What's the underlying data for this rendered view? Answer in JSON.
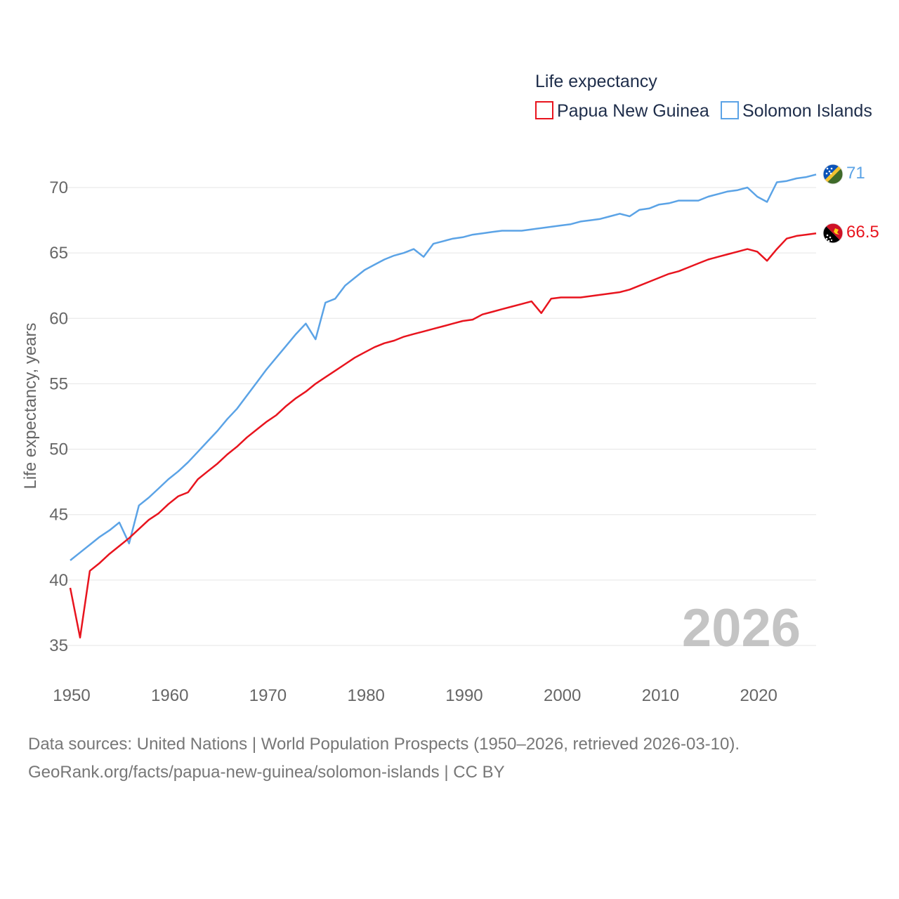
{
  "chart_data": {
    "type": "line",
    "legend_title": "Life expectancy",
    "legend_position": "top-right",
    "ylabel": "Life expectancy, years",
    "xlabel": "",
    "ylim": [
      33,
      73
    ],
    "xlim": [
      1950,
      2026
    ],
    "yticks": [
      35,
      40,
      45,
      50,
      55,
      60,
      65,
      70
    ],
    "xticks": [
      1950,
      1960,
      1970,
      1980,
      1990,
      2000,
      2010,
      2020
    ],
    "grid": true,
    "year_label": "2026",
    "series": [
      {
        "name": "Papua New Guinea",
        "color": "#e8141e",
        "flag_icon": "papua-new-guinea-flag-icon",
        "end_label": "66.5",
        "x": [
          1950,
          1951,
          1952,
          1953,
          1954,
          1955,
          1956,
          1957,
          1958,
          1959,
          1960,
          1961,
          1962,
          1963,
          1964,
          1965,
          1966,
          1967,
          1968,
          1969,
          1970,
          1971,
          1972,
          1973,
          1974,
          1975,
          1976,
          1977,
          1978,
          1979,
          1980,
          1981,
          1982,
          1983,
          1984,
          1985,
          1986,
          1987,
          1988,
          1989,
          1990,
          1991,
          1992,
          1993,
          1994,
          1995,
          1996,
          1997,
          1998,
          1999,
          2000,
          2001,
          2002,
          2003,
          2004,
          2005,
          2006,
          2007,
          2008,
          2009,
          2010,
          2011,
          2012,
          2013,
          2014,
          2015,
          2016,
          2017,
          2018,
          2019,
          2020,
          2021,
          2022,
          2023,
          2024,
          2025,
          2026
        ],
        "values": [
          39.4,
          35.6,
          40.7,
          41.3,
          42.0,
          42.6,
          43.2,
          43.9,
          44.6,
          45.1,
          45.8,
          46.4,
          46.7,
          47.7,
          48.3,
          48.9,
          49.6,
          50.2,
          50.9,
          51.5,
          52.1,
          52.6,
          53.3,
          53.9,
          54.4,
          55.0,
          55.5,
          56.0,
          56.5,
          57.0,
          57.4,
          57.8,
          58.1,
          58.3,
          58.6,
          58.8,
          59.0,
          59.2,
          59.4,
          59.6,
          59.8,
          59.9,
          60.3,
          60.5,
          60.7,
          60.9,
          61.1,
          61.3,
          60.4,
          61.5,
          61.6,
          61.6,
          61.6,
          61.7,
          61.8,
          61.9,
          62.0,
          62.2,
          62.5,
          62.8,
          63.1,
          63.4,
          63.6,
          63.9,
          64.2,
          64.5,
          64.7,
          64.9,
          65.1,
          65.3,
          65.1,
          64.4,
          65.3,
          66.1,
          66.3,
          66.4,
          66.5
        ]
      },
      {
        "name": "Solomon Islands",
        "color": "#5ba3e6",
        "flag_icon": "solomon-islands-flag-icon",
        "end_label": "71",
        "x": [
          1950,
          1951,
          1952,
          1953,
          1954,
          1955,
          1956,
          1957,
          1958,
          1959,
          1960,
          1961,
          1962,
          1963,
          1964,
          1965,
          1966,
          1967,
          1968,
          1969,
          1970,
          1971,
          1972,
          1973,
          1974,
          1975,
          1976,
          1977,
          1978,
          1979,
          1980,
          1981,
          1982,
          1983,
          1984,
          1985,
          1986,
          1987,
          1988,
          1989,
          1990,
          1991,
          1992,
          1993,
          1994,
          1995,
          1996,
          1997,
          1998,
          1999,
          2000,
          2001,
          2002,
          2003,
          2004,
          2005,
          2006,
          2007,
          2008,
          2009,
          2010,
          2011,
          2012,
          2013,
          2014,
          2015,
          2016,
          2017,
          2018,
          2019,
          2020,
          2021,
          2022,
          2023,
          2024,
          2025,
          2026
        ],
        "values": [
          41.5,
          42.1,
          42.7,
          43.3,
          43.8,
          44.4,
          42.8,
          45.7,
          46.3,
          47.0,
          47.7,
          48.3,
          49.0,
          49.8,
          50.6,
          51.4,
          52.3,
          53.1,
          54.1,
          55.1,
          56.1,
          57.0,
          57.9,
          58.8,
          59.6,
          58.4,
          61.2,
          61.5,
          62.5,
          63.1,
          63.7,
          64.1,
          64.5,
          64.8,
          65.0,
          65.3,
          64.7,
          65.7,
          65.9,
          66.1,
          66.2,
          66.4,
          66.5,
          66.6,
          66.7,
          66.7,
          66.7,
          66.8,
          66.9,
          67.0,
          67.1,
          67.2,
          67.4,
          67.5,
          67.6,
          67.8,
          68.0,
          67.8,
          68.3,
          68.4,
          68.7,
          68.8,
          69.0,
          69.0,
          69.0,
          69.3,
          69.5,
          69.7,
          69.8,
          70.0,
          69.3,
          68.9,
          70.4,
          70.5,
          70.7,
          70.8,
          71.0
        ]
      }
    ]
  },
  "footer": {
    "source_line": "Data sources: United Nations | World Population Prospects (1950–2026, retrieved 2026-03-10).",
    "attribution_line": "GeoRank.org/facts/papua-new-guinea/solomon-islands | CC BY"
  }
}
